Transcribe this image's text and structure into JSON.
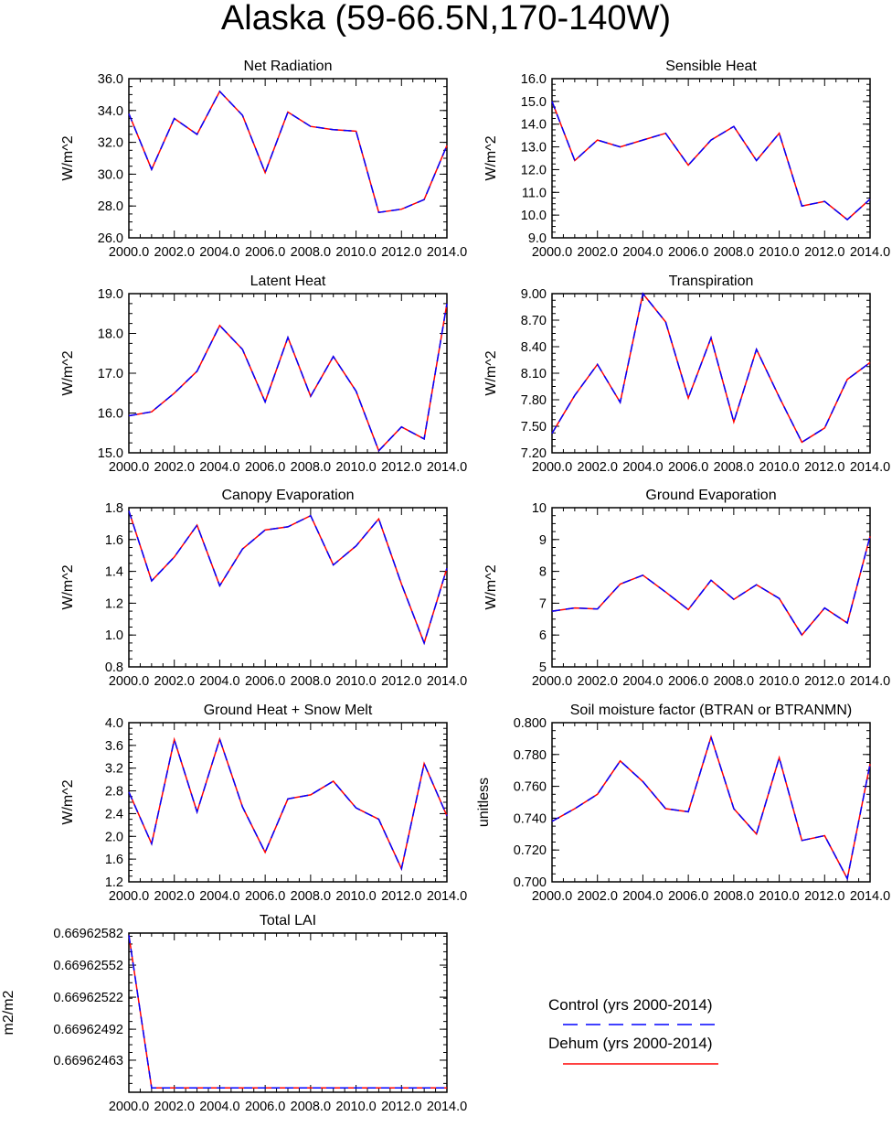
{
  "title": "Alaska (59-66.5N,170-140W)",
  "legend": {
    "items": [
      {
        "label": "Control (yrs 2000-2014)",
        "color": "#0000ff",
        "style": "dashed"
      },
      {
        "label": "Dehum (yrs 2000-2014)",
        "color": "#ff0000",
        "style": "solid"
      }
    ]
  },
  "chart_data": [
    {
      "type": "line",
      "title": "Net Radiation",
      "ylabel": "W/m^2",
      "xlim": [
        2000,
        2014
      ],
      "ylim": [
        26,
        36
      ],
      "x_ticks": [
        "2000.0",
        "2002.0",
        "2004.0",
        "2006.0",
        "2008.0",
        "2010.0",
        "2012.0",
        "2014.0"
      ],
      "y_ticks": [
        "26.0",
        "28.0",
        "30.0",
        "32.0",
        "34.0",
        "36.0"
      ],
      "y_tick_values": [
        26,
        28,
        30,
        32,
        34,
        36
      ],
      "x": [
        2000,
        2001,
        2002,
        2003,
        2004,
        2005,
        2006,
        2007,
        2008,
        2009,
        2010,
        2011,
        2012,
        2013,
        2014
      ],
      "series": [
        {
          "name": "Control (yrs 2000-2014)",
          "values": [
            33.8,
            30.3,
            33.5,
            32.5,
            35.2,
            33.7,
            30.1,
            33.9,
            33.0,
            32.8,
            32.7,
            27.6,
            27.8,
            28.4,
            31.8
          ]
        },
        {
          "name": "Dehum (yrs 2000-2014)",
          "values": [
            33.8,
            30.3,
            33.5,
            32.5,
            35.2,
            33.7,
            30.1,
            33.9,
            33.0,
            32.8,
            32.7,
            27.6,
            27.8,
            28.4,
            31.8
          ]
        }
      ]
    },
    {
      "type": "line",
      "title": "Sensible Heat",
      "ylabel": "W/m^2",
      "xlim": [
        2000,
        2014
      ],
      "ylim": [
        9,
        16
      ],
      "x_ticks": [
        "2000.0",
        "2002.0",
        "2004.0",
        "2006.0",
        "2008.0",
        "2010.0",
        "2012.0",
        "2014.0"
      ],
      "y_ticks": [
        "9.0",
        "10.0",
        "11.0",
        "12.0",
        "13.0",
        "14.0",
        "15.0",
        "16.0"
      ],
      "y_tick_values": [
        9,
        10,
        11,
        12,
        13,
        14,
        15,
        16
      ],
      "x": [
        2000,
        2001,
        2002,
        2003,
        2004,
        2005,
        2006,
        2007,
        2008,
        2009,
        2010,
        2011,
        2012,
        2013,
        2014
      ],
      "series": [
        {
          "name": "Control (yrs 2000-2014)",
          "values": [
            15.0,
            12.4,
            13.3,
            13.0,
            13.3,
            13.6,
            12.2,
            13.3,
            13.9,
            12.4,
            13.6,
            10.4,
            10.6,
            9.8,
            10.7
          ]
        },
        {
          "name": "Dehum (yrs 2000-2014)",
          "values": [
            15.0,
            12.4,
            13.3,
            13.0,
            13.3,
            13.6,
            12.2,
            13.3,
            13.9,
            12.4,
            13.6,
            10.4,
            10.6,
            9.8,
            10.7
          ]
        }
      ]
    },
    {
      "type": "line",
      "title": "Latent Heat",
      "ylabel": "W/m^2",
      "xlim": [
        2000,
        2014
      ],
      "ylim": [
        15,
        19
      ],
      "x_ticks": [
        "2000.0",
        "2002.0",
        "2004.0",
        "2006.0",
        "2008.0",
        "2010.0",
        "2012.0",
        "2014.0"
      ],
      "y_ticks": [
        "15.0",
        "16.0",
        "17.0",
        "18.0",
        "19.0"
      ],
      "y_tick_values": [
        15,
        16,
        17,
        18,
        19
      ],
      "x": [
        2000,
        2001,
        2002,
        2003,
        2004,
        2005,
        2006,
        2007,
        2008,
        2009,
        2010,
        2011,
        2012,
        2013,
        2014
      ],
      "series": [
        {
          "name": "Control (yrs 2000-2014)",
          "values": [
            15.93,
            16.03,
            16.5,
            17.05,
            18.2,
            17.6,
            16.28,
            17.9,
            16.42,
            17.42,
            16.55,
            15.05,
            15.65,
            15.35,
            18.75
          ]
        },
        {
          "name": "Dehum (yrs 2000-2014)",
          "values": [
            15.93,
            16.03,
            16.5,
            17.05,
            18.2,
            17.6,
            16.28,
            17.9,
            16.42,
            17.42,
            16.55,
            15.05,
            15.65,
            15.35,
            18.75
          ]
        }
      ]
    },
    {
      "type": "line",
      "title": "Transpiration",
      "ylabel": "W/m^2",
      "xlim": [
        2000,
        2014
      ],
      "ylim": [
        7.2,
        9.0
      ],
      "x_ticks": [
        "2000.0",
        "2002.0",
        "2004.0",
        "2006.0",
        "2008.0",
        "2010.0",
        "2012.0",
        "2014.0"
      ],
      "y_ticks": [
        "7.20",
        "7.50",
        "7.80",
        "8.10",
        "8.40",
        "8.70",
        "9.00"
      ],
      "y_tick_values": [
        7.2,
        7.5,
        7.8,
        8.1,
        8.4,
        8.7,
        9.0
      ],
      "x": [
        2000,
        2001,
        2002,
        2003,
        2004,
        2005,
        2006,
        2007,
        2008,
        2009,
        2010,
        2011,
        2012,
        2013,
        2014
      ],
      "series": [
        {
          "name": "Control (yrs 2000-2014)",
          "values": [
            7.42,
            7.85,
            8.2,
            7.77,
            9.0,
            8.68,
            7.82,
            8.5,
            7.55,
            8.37,
            7.83,
            7.32,
            7.48,
            8.03,
            8.22
          ]
        },
        {
          "name": "Dehum (yrs 2000-2014)",
          "values": [
            7.42,
            7.85,
            8.2,
            7.77,
            9.0,
            8.68,
            7.82,
            8.5,
            7.55,
            8.37,
            7.83,
            7.32,
            7.48,
            8.03,
            8.22
          ]
        }
      ]
    },
    {
      "type": "line",
      "title": "Canopy Evaporation",
      "ylabel": "W/m^2",
      "xlim": [
        2000,
        2014
      ],
      "ylim": [
        0.8,
        1.8
      ],
      "x_ticks": [
        "2000.0",
        "2002.0",
        "2004.0",
        "2006.0",
        "2008.0",
        "2010.0",
        "2012.0",
        "2014.0"
      ],
      "y_ticks": [
        "0.8",
        "1.0",
        "1.2",
        "1.4",
        "1.6",
        "1.8"
      ],
      "y_tick_values": [
        0.8,
        1.0,
        1.2,
        1.4,
        1.6,
        1.8
      ],
      "x": [
        2000,
        2001,
        2002,
        2003,
        2004,
        2005,
        2006,
        2007,
        2008,
        2009,
        2010,
        2011,
        2012,
        2013,
        2014
      ],
      "series": [
        {
          "name": "Control (yrs 2000-2014)",
          "values": [
            1.78,
            1.34,
            1.49,
            1.69,
            1.31,
            1.54,
            1.66,
            1.68,
            1.75,
            1.44,
            1.56,
            1.73,
            1.32,
            0.95,
            1.42
          ]
        },
        {
          "name": "Dehum (yrs 2000-2014)",
          "values": [
            1.78,
            1.34,
            1.49,
            1.69,
            1.31,
            1.54,
            1.66,
            1.68,
            1.75,
            1.44,
            1.56,
            1.73,
            1.32,
            0.95,
            1.42
          ]
        }
      ]
    },
    {
      "type": "line",
      "title": "Ground Evaporation",
      "ylabel": "W/m^2",
      "xlim": [
        2000,
        2014
      ],
      "ylim": [
        5,
        10
      ],
      "x_ticks": [
        "2000.0",
        "2002.0",
        "2004.0",
        "2006.0",
        "2008.0",
        "2010.0",
        "2012.0",
        "2014.0"
      ],
      "y_ticks": [
        "5",
        "6",
        "7",
        "8",
        "9",
        "10"
      ],
      "y_tick_values": [
        5,
        6,
        7,
        8,
        9,
        10
      ],
      "x": [
        2000,
        2001,
        2002,
        2003,
        2004,
        2005,
        2006,
        2007,
        2008,
        2009,
        2010,
        2011,
        2012,
        2013,
        2014
      ],
      "series": [
        {
          "name": "Control (yrs 2000-2014)",
          "values": [
            6.75,
            6.85,
            6.82,
            7.6,
            7.88,
            7.35,
            6.8,
            7.72,
            7.12,
            7.58,
            7.15,
            6.0,
            6.85,
            6.38,
            9.1
          ]
        },
        {
          "name": "Dehum (yrs 2000-2014)",
          "values": [
            6.75,
            6.85,
            6.82,
            7.6,
            7.88,
            7.35,
            6.8,
            7.72,
            7.12,
            7.58,
            7.15,
            6.0,
            6.85,
            6.38,
            9.1
          ]
        }
      ]
    },
    {
      "type": "line",
      "title": "Ground Heat + Snow Melt",
      "ylabel": "W/m^2",
      "xlim": [
        2000,
        2014
      ],
      "ylim": [
        1.2,
        4.0
      ],
      "x_ticks": [
        "2000.0",
        "2002.0",
        "2004.0",
        "2006.0",
        "2008.0",
        "2010.0",
        "2012.0",
        "2014.0"
      ],
      "y_ticks": [
        "1.2",
        "1.6",
        "2.0",
        "2.4",
        "2.8",
        "3.2",
        "3.6",
        "4.0"
      ],
      "y_tick_values": [
        1.2,
        1.6,
        2.0,
        2.4,
        2.8,
        3.2,
        3.6,
        4.0
      ],
      "x": [
        2000,
        2001,
        2002,
        2003,
        2004,
        2005,
        2006,
        2007,
        2008,
        2009,
        2010,
        2011,
        2012,
        2013,
        2014
      ],
      "series": [
        {
          "name": "Control (yrs 2000-2014)",
          "values": [
            2.78,
            1.87,
            3.7,
            2.43,
            3.71,
            2.52,
            1.72,
            2.66,
            2.73,
            2.97,
            2.5,
            2.3,
            1.43,
            3.28,
            2.36
          ]
        },
        {
          "name": "Dehum (yrs 2000-2014)",
          "values": [
            2.78,
            1.87,
            3.7,
            2.43,
            3.71,
            2.52,
            1.72,
            2.66,
            2.73,
            2.97,
            2.5,
            2.3,
            1.43,
            3.28,
            2.36
          ]
        }
      ]
    },
    {
      "type": "line",
      "title": "Soil moisture factor (BTRAN or BTRANMN)",
      "ylabel": "unitless",
      "xlim": [
        2000,
        2014
      ],
      "ylim": [
        0.7,
        0.8
      ],
      "x_ticks": [
        "2000.0",
        "2002.0",
        "2004.0",
        "2006.0",
        "2008.0",
        "2010.0",
        "2012.0",
        "2014.0"
      ],
      "y_ticks": [
        "0.700",
        "0.720",
        "0.740",
        "0.760",
        "0.780",
        "0.800"
      ],
      "y_tick_values": [
        0.7,
        0.72,
        0.74,
        0.76,
        0.78,
        0.8
      ],
      "x": [
        2000,
        2001,
        2002,
        2003,
        2004,
        2005,
        2006,
        2007,
        2008,
        2009,
        2010,
        2011,
        2012,
        2013,
        2014
      ],
      "series": [
        {
          "name": "Control (yrs 2000-2014)",
          "values": [
            0.738,
            0.746,
            0.755,
            0.776,
            0.763,
            0.746,
            0.744,
            0.791,
            0.746,
            0.73,
            0.778,
            0.726,
            0.729,
            0.702,
            0.774
          ]
        },
        {
          "name": "Dehum (yrs 2000-2014)",
          "values": [
            0.738,
            0.746,
            0.755,
            0.776,
            0.763,
            0.746,
            0.744,
            0.791,
            0.746,
            0.73,
            0.778,
            0.726,
            0.729,
            0.702,
            0.774
          ]
        }
      ]
    },
    {
      "type": "line",
      "title": "Total LAI",
      "ylabel": "m2/m2",
      "xlim": [
        2000,
        2014
      ],
      "ylim": [
        0.66962433,
        0.66962582
      ],
      "x_ticks": [
        "2000.0",
        "2002.0",
        "2004.0",
        "2006.0",
        "2008.0",
        "2010.0",
        "2012.0",
        "2014.0"
      ],
      "y_ticks": [
        "0.66962463",
        "0.66962492",
        "0.66962522",
        "0.66962552",
        "0.66962582"
      ],
      "y_tick_values": [
        0.66962463,
        0.66962492,
        0.66962522,
        0.66962552,
        0.66962582
      ],
      "x": [
        2000,
        2001,
        2002,
        2003,
        2004,
        2005,
        2006,
        2007,
        2008,
        2009,
        2010,
        2011,
        2012,
        2013,
        2014
      ],
      "series": [
        {
          "name": "Control (yrs 2000-2014)",
          "values": [
            0.6696258,
            0.66962437,
            0.66962437,
            0.66962437,
            0.66962437,
            0.66962437,
            0.66962437,
            0.66962437,
            0.66962437,
            0.66962437,
            0.66962437,
            0.66962437,
            0.66962437,
            0.66962437,
            0.66962437
          ]
        },
        {
          "name": "Dehum (yrs 2000-2014)",
          "values": [
            0.6696258,
            0.66962437,
            0.66962437,
            0.66962437,
            0.66962437,
            0.66962437,
            0.66962437,
            0.66962437,
            0.66962437,
            0.66962437,
            0.66962437,
            0.66962437,
            0.66962437,
            0.66962437,
            0.66962437
          ]
        }
      ]
    }
  ]
}
